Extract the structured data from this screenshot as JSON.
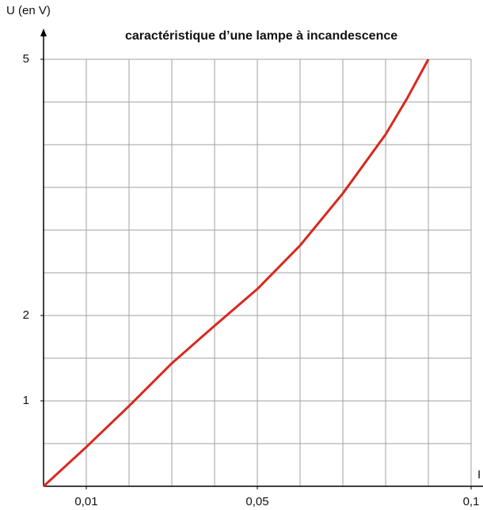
{
  "chart_data": {
    "type": "line",
    "title": "caractéristique d’une lampe à incandescence",
    "ylabel": "U (en V)",
    "xlabel": "I",
    "x": [
      0,
      0.01,
      0.02,
      0.03,
      0.04,
      0.05,
      0.06,
      0.07,
      0.08,
      0.085,
      0.09
    ],
    "series": [
      {
        "name": "U",
        "color": "#d9281e",
        "values": [
          0,
          0.46,
          0.94,
          1.44,
          1.88,
          2.31,
          2.82,
          3.43,
          4.12,
          4.54,
          5
        ]
      }
    ],
    "xlim": [
      0,
      0.1
    ],
    "ylim": [
      0,
      5
    ],
    "xticks": [
      {
        "value": 0.01,
        "label": "0,01"
      },
      {
        "value": 0.05,
        "label": "0,05"
      },
      {
        "value": 0.1,
        "label": "0,1"
      }
    ],
    "yticks": [
      1,
      2,
      5
    ],
    "xgrid": [
      0.01,
      0.02,
      0.03,
      0.04,
      0.05,
      0.06,
      0.07,
      0.08,
      0.09,
      0.1
    ],
    "ygrid": [
      0.5,
      1,
      1.5,
      2,
      2.5,
      3,
      3.5,
      4,
      4.5,
      5
    ],
    "grid": true
  }
}
